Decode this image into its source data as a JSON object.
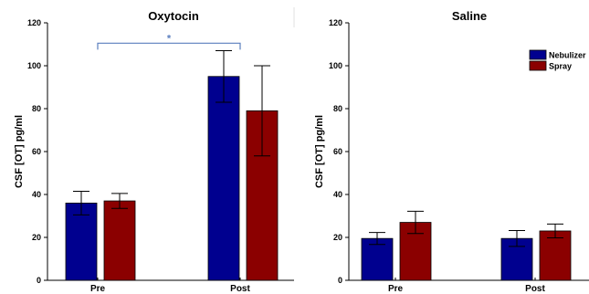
{
  "chart_data": [
    {
      "type": "bar",
      "title": "Oxytocin",
      "ylabel": "CSF [OT] pg/ml",
      "xlabel": "",
      "ylim": [
        0,
        120
      ],
      "yticks": [
        0,
        20,
        40,
        60,
        80,
        100,
        120
      ],
      "grid": false,
      "categories": [
        "Pre",
        "Post"
      ],
      "series": [
        {
          "name": "Nebulizer",
          "values": [
            36,
            95
          ],
          "error": [
            5.5,
            12
          ]
        },
        {
          "name": "Spray",
          "values": [
            37,
            79
          ],
          "error": [
            3.5,
            21
          ]
        }
      ],
      "annotation": {
        "text": "*",
        "from": "Pre",
        "to": "Post",
        "color": "#5b7fbf"
      }
    },
    {
      "type": "bar",
      "title": "Saline",
      "ylabel": "CSF [OT] pg/ml",
      "xlabel": "",
      "ylim": [
        0,
        120
      ],
      "yticks": [
        0,
        20,
        40,
        60,
        80,
        100,
        120
      ],
      "grid": false,
      "categories": [
        "Pre",
        "Post"
      ],
      "series": [
        {
          "name": "Nebulizer",
          "values": [
            19.5,
            19.5
          ],
          "error": [
            2.8,
            3.7
          ]
        },
        {
          "name": "Spray",
          "values": [
            27,
            23
          ],
          "error": [
            5.2,
            3.2
          ]
        }
      ],
      "legend": "top-right"
    }
  ],
  "colors": {
    "Nebulizer": "#00008f",
    "Spray": "#8b0000",
    "annotation": "#5b7fbf"
  }
}
